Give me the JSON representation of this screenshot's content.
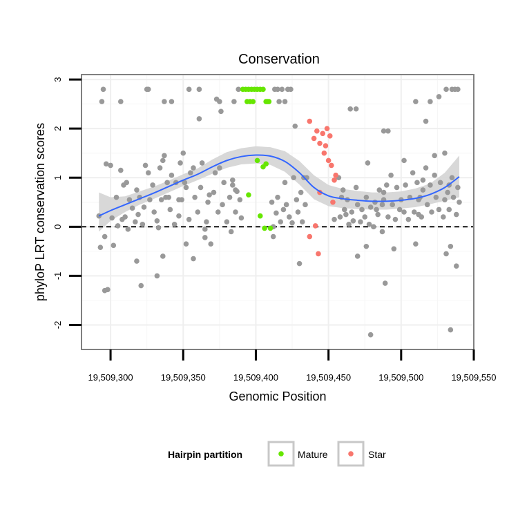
{
  "chart_data": {
    "type": "scatter",
    "title": "Conservation",
    "xlabel": "Genomic Position",
    "ylabel": "phyloP LRT conservation scores",
    "xlim": [
      19509280,
      19509550
    ],
    "ylim": [
      -2.5,
      3.1
    ],
    "xticks": [
      19509300,
      19509350,
      19509400,
      19509450,
      19509500,
      19509550
    ],
    "xtick_labels": [
      "19,509,300",
      "19,509,350",
      "19,509,400",
      "19,509,450",
      "19,509,500",
      "19,509,550"
    ],
    "yticks": [
      -2,
      -1,
      0,
      1,
      2,
      3
    ],
    "ytick_labels": [
      "-2",
      "-1",
      "0",
      "1",
      "2",
      "3"
    ],
    "reference_line": {
      "y": 0,
      "style": "dashed"
    },
    "legend": {
      "title": "Hairpin partition",
      "entries": [
        {
          "label": "Mature",
          "color": "#66e600"
        },
        {
          "label": "Star",
          "color": "#f8766d"
        }
      ]
    },
    "colors": {
      "other": "#999999",
      "smooth": "#3366ff",
      "ribbon": "#d4d4d4"
    },
    "smooth": {
      "x": [
        19509292,
        19509300,
        19509310,
        19509320,
        19509330,
        19509340,
        19509350,
        19509360,
        19509370,
        19509380,
        19509390,
        19509400,
        19509410,
        19509420,
        19509430,
        19509440,
        19509450,
        19509460,
        19509470,
        19509480,
        19509490,
        19509500,
        19509510,
        19509520,
        19509530,
        19509540
      ],
      "y": [
        0.22,
        0.33,
        0.45,
        0.57,
        0.69,
        0.82,
        0.95,
        1.07,
        1.22,
        1.35,
        1.43,
        1.46,
        1.44,
        1.33,
        1.1,
        0.8,
        0.63,
        0.57,
        0.54,
        0.52,
        0.52,
        0.54,
        0.58,
        0.66,
        0.8,
        1.02
      ],
      "lower": [
        -0.1,
        0.12,
        0.3,
        0.45,
        0.57,
        0.7,
        0.83,
        0.95,
        1.08,
        1.2,
        1.27,
        1.29,
        1.26,
        1.12,
        0.86,
        0.56,
        0.42,
        0.38,
        0.36,
        0.35,
        0.35,
        0.37,
        0.4,
        0.46,
        0.53,
        0.6
      ],
      "upper": [
        0.7,
        0.6,
        0.62,
        0.72,
        0.82,
        0.94,
        1.07,
        1.19,
        1.37,
        1.52,
        1.6,
        1.64,
        1.62,
        1.54,
        1.34,
        1.05,
        0.85,
        0.77,
        0.73,
        0.7,
        0.7,
        0.72,
        0.78,
        0.88,
        1.1,
        1.45
      ]
    },
    "series": [
      {
        "name": "Mature",
        "color": "#66e600",
        "x": [
          19509391,
          19509393,
          19509395,
          19509397,
          19509399,
          19509401,
          19509403,
          19509405,
          19509407,
          19509409,
          19509394,
          19509396,
          19509398,
          19509408,
          19509401,
          19509403,
          19509405,
          19509407,
          19509395,
          19509406,
          19509410
        ],
        "y": [
          2.8,
          2.8,
          2.8,
          2.8,
          2.8,
          2.8,
          2.8,
          2.8,
          2.55,
          2.55,
          2.55,
          2.55,
          2.55,
          2.55,
          1.35,
          0.22,
          1.22,
          1.28,
          0.65,
          -0.03,
          -0.03
        ]
      },
      {
        "name": "Star",
        "color": "#f8766d",
        "x": [
          19509437,
          19509440,
          19509442,
          19509444,
          19509446,
          19509447,
          19509448,
          19509449,
          19509450,
          19509451,
          19509452,
          19509453,
          19509454,
          19509455,
          19509437,
          19509441,
          19509444,
          19509443
        ],
        "y": [
          2.15,
          1.8,
          1.95,
          1.7,
          1.9,
          1.5,
          1.65,
          2.0,
          1.35,
          1.85,
          1.25,
          0.5,
          0.95,
          1.05,
          -0.2,
          0.02,
          0.7,
          -0.55
        ]
      },
      {
        "name": "Other",
        "color": "#999999",
        "x": [
          19509292,
          19509293,
          19509294,
          19509296,
          19509297,
          19509298,
          19509300,
          19509301,
          19509302,
          19509304,
          19509305,
          19509307,
          19509309,
          19509310,
          19509311,
          19509312,
          19509313,
          19509315,
          19509317,
          19509318,
          19509319,
          19509320,
          19509322,
          19509323,
          19509324,
          19509326,
          19509327,
          19509329,
          19509330,
          19509332,
          19509333,
          19509334,
          19509335,
          19509337,
          19509338,
          19509339,
          19509341,
          19509342,
          19509344,
          19509345,
          19509347,
          19509348,
          19509349,
          19509351,
          19509352,
          19509354,
          19509355,
          19509357,
          19509358,
          19509360,
          19509362,
          19509363,
          19509365,
          19509366,
          19509367,
          19509369,
          19509371,
          19509372,
          19509374,
          19509375,
          19509377,
          19509378,
          19509380,
          19509382,
          19509384,
          19509386,
          19509387,
          19509389,
          19509390,
          19509411,
          19509412,
          19509414,
          19509415,
          19509417,
          19509419,
          19509420,
          19509421,
          19509423,
          19509425,
          19509426,
          19509428,
          19509429,
          19509431,
          19509432,
          19509434,
          19509435,
          19509457,
          19509458,
          19509460,
          19509461,
          19509463,
          19509464,
          19509466,
          19509467,
          19509469,
          19509470,
          19509472,
          19509473,
          19509475,
          19509476,
          19509478,
          19509479,
          19509481,
          19509482,
          19509484,
          19509485,
          19509487,
          19509488,
          19509490,
          19509491,
          19509493,
          19509494,
          19509496,
          19509497,
          19509499,
          19509500,
          19509502,
          19509503,
          19509505,
          19509506,
          19509508,
          19509509,
          19509511,
          19509512,
          19509514,
          19509515,
          19509517,
          19509518,
          19509520,
          19509521,
          19509523,
          19509524,
          19509526,
          19509527,
          19509529,
          19509530,
          19509532,
          19509533,
          19509535,
          19509536,
          19509538,
          19509539,
          19509540,
          19509295,
          19509325,
          19509347,
          19509361,
          19509376,
          19509412,
          19509430,
          19509470,
          19509477,
          19509488,
          19509533
        ],
        "y": [
          0.22,
          -0.42,
          2.55,
          -0.2,
          1.28,
          -1.28,
          1.25,
          0.18,
          -0.38,
          0.6,
          0.02,
          1.15,
          0.85,
          0.2,
          0.9,
          -0.05,
          0.55,
          0.38,
          0.1,
          0.75,
          0.25,
          0.6,
          0.05,
          0.4,
          1.25,
          1.1,
          0.55,
          0.85,
          0.3,
          0.12,
          -0.02,
          1.2,
          0.55,
          1.45,
          0.6,
          0.9,
          0.35,
          1.05,
          0.05,
          0.9,
          0.22,
          1.3,
          0.55,
          0.9,
          0.8,
          0.15,
          1.1,
          1.2,
          0.6,
          0.3,
          0.8,
          1.3,
          -0.22,
          0.1,
          0.5,
          -0.35,
          0.7,
          1.1,
          0.3,
          1.2,
          0.45,
          0.9,
          0.1,
          0.6,
          0.85,
          0.3,
          0.72,
          0.55,
          0.18,
          0.5,
          0.0,
          0.28,
          0.6,
          0.1,
          0.35,
          0.9,
          0.45,
          0.2,
          0.08,
          1.0,
          0.55,
          0.3,
          0.7,
          0.1,
          0.45,
          1.0,
          1.0,
          0.2,
          0.75,
          0.35,
          0.55,
          0.05,
          0.3,
          0.12,
          0.8,
          0.45,
          0.1,
          0.35,
          0.2,
          0.6,
          0.05,
          0.4,
          0.0,
          0.5,
          0.25,
          0.75,
          -0.1,
          0.55,
          0.85,
          0.2,
          1.05,
          0.45,
          0.15,
          0.8,
          0.35,
          0.55,
          0.3,
          0.85,
          0.15,
          0.6,
          1.1,
          0.3,
          0.9,
          0.55,
          0.2,
          0.75,
          1.2,
          0.45,
          0.85,
          0.3,
          1.05,
          0.6,
          0.35,
          0.9,
          0.2,
          0.55,
          0.7,
          0.35,
          1.0,
          0.6,
          0.25,
          0.8,
          0.5,
          2.8,
          2.8,
          0.55,
          2.2,
          2.35,
          -0.2,
          -0.75,
          -0.6,
          1.3,
          0.7,
          0.85
        ],
        "extra_x": [
          19509296,
          19509307,
          19509321,
          19509326,
          19509332,
          19509337,
          19509342,
          19509354,
          19509357,
          19509361,
          19509373,
          19509375,
          19509385,
          19509388,
          19509413,
          19509415,
          19509416,
          19509418,
          19509420,
          19509422,
          19509424,
          19509427,
          19509465,
          19509469,
          19509479,
          19509488,
          19509489,
          19509491,
          19509495,
          19509502,
          19509510,
          19509517,
          19509520,
          19509526,
          19509531,
          19509534,
          19509535,
          19509537,
          19509538,
          19509539,
          19509308,
          19509318,
          19509336,
          19509340,
          19509352,
          19509365,
          19509368,
          19509384,
          19509386,
          19509459,
          19509462,
          19509483,
          19509510,
          19509513,
          19509515,
          19509523,
          19509531,
          19509534,
          19509336,
          19509350,
          19509383,
          19509433,
          19509454,
          19509476,
          19509487,
          19509512,
          19509530
        ],
        "extra_y": [
          -1.3,
          2.55,
          -1.2,
          2.8,
          -1.0,
          2.55,
          2.55,
          2.8,
          -0.65,
          2.8,
          2.6,
          2.55,
          2.55,
          2.8,
          2.8,
          2.8,
          2.55,
          2.8,
          2.55,
          2.8,
          2.8,
          2.05,
          2.4,
          2.4,
          -2.2,
          1.95,
          -1.15,
          1.95,
          -0.45,
          1.35,
          2.55,
          2.15,
          2.55,
          2.65,
          2.8,
          -2.1,
          2.8,
          2.8,
          -0.8,
          2.8,
          0.15,
          -0.7,
          -0.6,
          0.6,
          -0.35,
          -0.05,
          0.65,
          0.95,
          0.75,
          0.6,
          0.25,
          0.35,
          -0.35,
          0.6,
          0.95,
          1.45,
          -0.55,
          -0.4,
          1.35,
          1.5,
          -0.1,
          1.0,
          0.15,
          -0.4,
          0.45,
          0.25,
          1.5
        ]
      }
    ]
  }
}
